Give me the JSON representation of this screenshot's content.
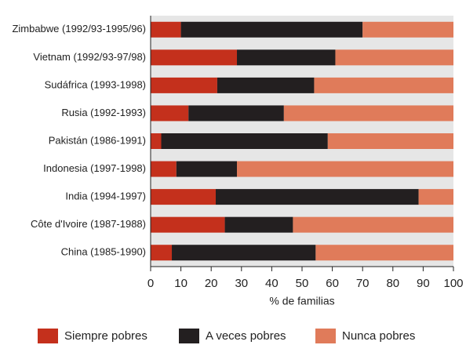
{
  "chart_data": {
    "type": "stacked-bar-horizontal",
    "categories": [
      "Zimbabwe (1992/93-1995/96)",
      "Vietnam (1992/93-97/98)",
      "Sudáfrica (1993-1998)",
      "Rusia (1992-1993)",
      "Pakistán (1986-1991)",
      "Indonesia (1997-1998)",
      "India (1994-1997)",
      "Côte d'Ivoire (1987-1988)",
      "China (1985-1990)"
    ],
    "series": [
      {
        "name": "Siempre pobres",
        "color": "#c4301c",
        "values": [
          10,
          28.5,
          22,
          12.5,
          3.5,
          8.5,
          21.5,
          24.5,
          7
        ]
      },
      {
        "name": "A veces pobres",
        "color": "#231f20",
        "values": [
          60,
          32.5,
          32,
          31.5,
          55,
          20,
          67,
          22.5,
          47.5
        ]
      },
      {
        "name": "Nunca pobres",
        "color": "#e07b5a",
        "values": [
          30,
          39,
          46,
          56,
          41.5,
          71.5,
          11.5,
          53,
          45.5
        ]
      }
    ],
    "xlabel": "% de familias",
    "xlim": [
      0,
      100
    ],
    "xticks": [
      0,
      10,
      20,
      30,
      40,
      50,
      60,
      70,
      80,
      90,
      100
    ],
    "legend": "bottom"
  }
}
